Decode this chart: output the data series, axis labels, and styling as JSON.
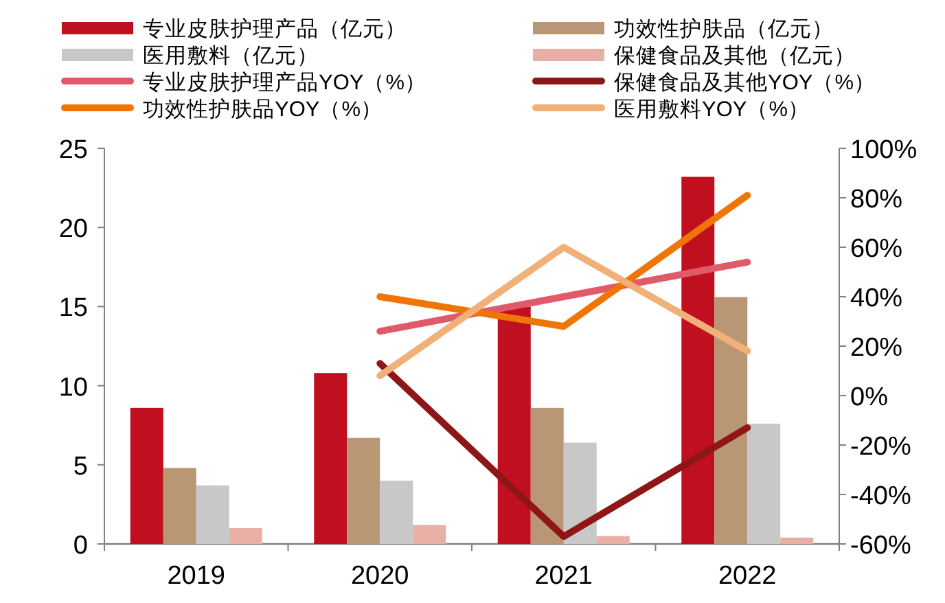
{
  "chart_data": {
    "type": "bar",
    "categories": [
      "2019",
      "2020",
      "2021",
      "2022"
    ],
    "series": [
      {
        "name": "专业皮肤护理产品（亿元）",
        "color": "#c00f1e",
        "values": [
          8.6,
          10.8,
          15.0,
          23.2
        ]
      },
      {
        "name": "功效性护肤品（亿元）",
        "color": "#b99774",
        "values": [
          4.8,
          6.7,
          8.6,
          15.6
        ]
      },
      {
        "name": "医用敷料（亿元）",
        "color": "#c8c8c8",
        "values": [
          3.7,
          4.0,
          6.4,
          7.6
        ]
      },
      {
        "name": "保健食品及其他（亿元）",
        "color": "#e8b0a5",
        "values": [
          1.0,
          1.2,
          0.5,
          0.4
        ]
      },
      {
        "name": "专业皮肤护理产品YOY（%）",
        "type": "line",
        "axis": "y2",
        "color": "#e05a6a",
        "values": [
          null,
          26,
          40,
          54
        ]
      },
      {
        "name": "保健食品及其他YOY（%）",
        "type": "line",
        "axis": "y2",
        "color": "#8f1616",
        "values": [
          null,
          13,
          -57,
          -13
        ]
      },
      {
        "name": "功效性护肤品YOY（%）",
        "type": "line",
        "axis": "y2",
        "color": "#ef7606",
        "values": [
          null,
          40,
          28,
          81
        ]
      },
      {
        "name": "医用敷料YOY（%）",
        "type": "line",
        "axis": "y2",
        "color": "#f0b077",
        "values": [
          null,
          8,
          60,
          18
        ]
      }
    ],
    "ylim": [
      0,
      25
    ],
    "yticks": [
      0,
      5,
      10,
      15,
      20,
      25
    ],
    "y2lim": [
      -60,
      100
    ],
    "y2ticks": [
      {
        "value": -60,
        "label": "-60%"
      },
      {
        "value": -40,
        "label": "-40%"
      },
      {
        "value": -20,
        "label": "-20%"
      },
      {
        "value": 0,
        "label": "0%"
      },
      {
        "value": 20,
        "label": "20%"
      },
      {
        "value": 40,
        "label": "40%"
      },
      {
        "value": 60,
        "label": "60%"
      },
      {
        "value": 80,
        "label": "80%"
      },
      {
        "value": 100,
        "label": "100%"
      }
    ],
    "legend": "top",
    "line_style": "solid",
    "marker": "none"
  }
}
